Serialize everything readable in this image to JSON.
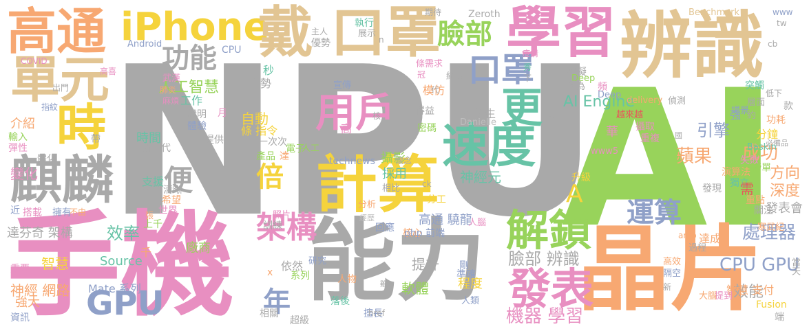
{
  "colors": {
    "background": "#ffffff",
    "palette": {
      "gray": "#a9a9a9",
      "green": "#98d35b",
      "pink": "#e88fc1",
      "tan": "#e2c593",
      "orange": "#f7a872",
      "yellow": "#f5d33c",
      "blue": "#8fa0c8",
      "teal": "#67c3a6",
      "mid_gray": "#bdbdbd",
      "red": "#e7585b"
    }
  },
  "words": [
    {
      "text": "NPU",
      "color": "gray"
    },
    {
      "text": "AI",
      "color": "green"
    },
    {
      "text": "手機",
      "color": "pink"
    },
    {
      "text": "晶片",
      "color": "orange"
    },
    {
      "text": "能力",
      "color": "gray"
    },
    {
      "text": "辨識",
      "color": "tan"
    },
    {
      "text": "高通",
      "color": "orange"
    },
    {
      "text": "iPhone",
      "color": "yellow"
    },
    {
      "text": "戴",
      "color": "tan"
    },
    {
      "text": "口罩",
      "color": "tan"
    },
    {
      "text": "學習",
      "color": "pink"
    },
    {
      "text": "單元",
      "color": "tan"
    },
    {
      "text": "時",
      "color": "yellow"
    },
    {
      "text": "麒麟",
      "color": "gray"
    },
    {
      "text": "計算",
      "color": "yellow"
    },
    {
      "text": "速度",
      "color": "teal"
    },
    {
      "text": "用戶",
      "color": "pink"
    },
    {
      "text": "更",
      "color": "teal"
    },
    {
      "text": "解鎖",
      "color": "green"
    },
    {
      "text": "發表",
      "color": "pink"
    },
    {
      "text": "GPU",
      "color": "blue"
    },
    {
      "text": "架構",
      "color": "pink"
    },
    {
      "text": "功能",
      "color": "gray"
    },
    {
      "text": "臉部",
      "color": "green"
    },
    {
      "text": "口罩",
      "color": "blue"
    },
    {
      "text": "運算",
      "color": "blue"
    },
    {
      "text": "倍",
      "color": "yellow"
    },
    {
      "text": "便",
      "color": "gray"
    },
    {
      "text": "年",
      "color": "blue"
    },
    {
      "text": "A",
      "color": "yellow"
    },
    {
      "text": "效率",
      "color": "teal"
    },
    {
      "text": "蘋果",
      "color": "orange"
    },
    {
      "text": "引擎",
      "color": "blue"
    },
    {
      "text": "成功",
      "color": "orange"
    },
    {
      "text": "機器 學習",
      "color": "pink"
    },
    {
      "text": "處理器",
      "color": "blue"
    },
    {
      "text": "CPU GPU",
      "color": "blue"
    },
    {
      "text": "臉部 辨識",
      "color": "gray"
    },
    {
      "text": "人工智慧",
      "color": "green"
    },
    {
      "text": "AI Engine",
      "color": "teal"
    },
    {
      "text": "神經元",
      "color": "teal"
    },
    {
      "text": "深度",
      "color": "orange"
    },
    {
      "text": "方向",
      "color": "orange"
    },
    {
      "text": "效能",
      "color": "gray"
    },
    {
      "text": "發表會",
      "color": "gray"
    },
    {
      "text": "高通 驍龍",
      "color": "blue"
    },
    {
      "text": "提升",
      "color": "gray"
    },
    {
      "text": "軟體",
      "color": "green"
    },
    {
      "text": "程度",
      "color": "yellow"
    },
    {
      "text": "攝影",
      "color": "green"
    },
    {
      "text": "時間",
      "color": "teal"
    },
    {
      "text": "介紹",
      "color": "orange"
    },
    {
      "text": "變化",
      "color": "pink"
    },
    {
      "text": "廠商",
      "color": "green"
    },
    {
      "text": "智慧",
      "color": "yellow"
    },
    {
      "text": "神經 網路",
      "color": "orange"
    },
    {
      "text": "強大",
      "color": "orange"
    },
    {
      "text": "資訊",
      "color": "blue"
    },
    {
      "text": "Mate 系列",
      "color": "blue"
    },
    {
      "text": "Source",
      "color": "teal"
    },
    {
      "text": "達芬奇 架構",
      "color": "gray"
    },
    {
      "text": "自動",
      "color": "yellow"
    },
    {
      "text": "條 指令",
      "color": "yellow"
    },
    {
      "text": "一次次",
      "color": "gray"
    },
    {
      "text": "人物",
      "color": "orange"
    },
    {
      "text": "A 仿生",
      "color": "gray"
    },
    {
      "text": "Danielle",
      "color": "mid_gray"
    },
    {
      "text": "密碼",
      "color": "green"
    },
    {
      "text": "採用",
      "color": "teal"
    },
    {
      "text": "分析",
      "color": "orange"
    },
    {
      "text": "分工",
      "color": "yellow"
    },
    {
      "text": "核心",
      "color": "orange"
    },
    {
      "text": "達成",
      "color": "orange"
    },
    {
      "text": "分鐘",
      "color": "yellow"
    },
    {
      "text": "功耗",
      "color": "orange"
    },
    {
      "text": "升級",
      "color": "yellow"
    },
    {
      "text": "相比",
      "color": "gray"
    },
    {
      "text": "www5",
      "color": "pink"
    },
    {
      "text": "Baskin",
      "color": "teal"
    },
    {
      "text": "失敗",
      "color": "pink"
    },
    {
      "text": "演算法",
      "color": "orange"
    },
    {
      "text": "獨立",
      "color": "teal"
    },
    {
      "text": "榜單",
      "color": "green"
    },
    {
      "text": "發現",
      "color": "gray"
    },
    {
      "text": "需",
      "color": "red"
    },
    {
      "text": "重點",
      "color": "orange"
    },
    {
      "text": "關注",
      "color": "gray"
    },
    {
      "text": "寒武紀",
      "color": "orange"
    },
    {
      "text": "過程",
      "color": "gray"
    },
    {
      "text": "高效",
      "color": "orange"
    },
    {
      "text": "隔空",
      "color": "blue"
    },
    {
      "text": "智慧 支付",
      "color": "orange"
    },
    {
      "text": "Fusion",
      "color": "yellow"
    },
    {
      "text": "端",
      "color": "gray"
    },
    {
      "text": "提到",
      "color": "pink"
    },
    {
      "text": "大腦",
      "color": "orange"
    },
    {
      "text": "新",
      "color": "gray"
    },
    {
      "text": "當天",
      "color": "gray"
    },
    {
      "text": "amp",
      "color": "orange"
    },
    {
      "text": "人腦",
      "color": "pink"
    },
    {
      "text": "php 前端",
      "color": "blue"
    },
    {
      "text": "剛",
      "color": "blue"
    },
    {
      "text": "準確",
      "color": "blue"
    },
    {
      "text": "落後",
      "color": "teal"
    },
    {
      "text": "擅長",
      "color": "blue"
    },
    {
      "text": "人類",
      "color": "blue"
    },
    {
      "text": "研究",
      "color": "blue"
    },
    {
      "text": "依然",
      "color": "gray"
    },
    {
      "text": "回應",
      "color": "blue"
    },
    {
      "text": "經歷",
      "color": "mid_gray"
    },
    {
      "text": "超級",
      "color": "gray"
    },
    {
      "text": "相關",
      "color": "gray"
    },
    {
      "text": "重要",
      "color": "pink"
    },
    {
      "text": "世界",
      "color": "pink"
    },
    {
      "text": "首",
      "color": "gray"
    },
    {
      "text": "清晰",
      "color": "gray"
    },
    {
      "text": "希望",
      "color": "orange"
    },
    {
      "text": "照片",
      "color": "pink"
    },
    {
      "text": "訓練",
      "color": "gray"
    },
    {
      "text": "支援",
      "color": "teal"
    },
    {
      "text": "新一代",
      "color": "gray"
    },
    {
      "text": "提供",
      "color": "gray"
    },
    {
      "text": "體驗",
      "color": "blue"
    },
    {
      "text": "證明",
      "color": "gray"
    },
    {
      "text": "工作",
      "color": "teal"
    },
    {
      "text": "手勢",
      "color": "gray"
    },
    {
      "text": "秒",
      "color": "teal"
    },
    {
      "text": "武漢",
      "color": "pink"
    },
    {
      "text": "麻煩",
      "color": "pink"
    },
    {
      "text": "指紋",
      "color": "blue"
    },
    {
      "text": "出門",
      "color": "gray"
    },
    {
      "text": "高喜",
      "color": "pink"
    },
    {
      "text": "COVID",
      "color": "pink"
    },
    {
      "text": "Android",
      "color": "blue"
    },
    {
      "text": "CPU",
      "color": "blue"
    },
    {
      "text": "主人",
      "color": "gray"
    },
    {
      "text": "優勢",
      "color": "gray"
    },
    {
      "text": "執行",
      "color": "teal"
    },
    {
      "text": "展示",
      "color": "gray"
    },
    {
      "text": "期待",
      "color": "gray"
    },
    {
      "text": "Zeroth",
      "color": "gray"
    },
    {
      "text": "Benchmark",
      "color": "tan"
    },
    {
      "text": "www",
      "color": "blue"
    },
    {
      "text": "tw",
      "color": "gray"
    },
    {
      "text": "cb",
      "color": "gray"
    },
    {
      "text": "模擬",
      "color": "gray"
    },
    {
      "text": "華為",
      "color": "gray"
    },
    {
      "text": "Deep",
      "color": "green"
    },
    {
      "text": "宣傳",
      "color": "blue"
    },
    {
      "text": "模仿",
      "color": "orange"
    },
    {
      "text": "網友",
      "color": "gray"
    },
    {
      "text": "得益",
      "color": "gray"
    },
    {
      "text": "delivery",
      "color": "orange"
    },
    {
      "text": "偵測",
      "color": "gray"
    },
    {
      "text": "突觸",
      "color": "teal"
    },
    {
      "text": "層面",
      "color": "gray"
    },
    {
      "text": "場景",
      "color": "blue"
    },
    {
      "text": "越來越",
      "color": "red"
    },
    {
      "text": "強",
      "color": "blue"
    },
    {
      "text": "約",
      "color": "gray"
    },
    {
      "text": "款",
      "color": "gray"
    },
    {
      "text": "攝取",
      "color": "pink"
    },
    {
      "text": "重複",
      "color": "pink"
    },
    {
      "text": "華",
      "color": "pink"
    },
    {
      "text": "兩",
      "color": "gray"
    },
    {
      "text": "technews",
      "color": "blue"
    },
    {
      "text": "懷念",
      "color": "gray"
    },
    {
      "text": "高",
      "color": "pink"
    },
    {
      "text": "核",
      "color": "gray"
    },
    {
      "text": "人工",
      "color": "green"
    },
    {
      "text": "電子",
      "color": "green"
    },
    {
      "text": "產品",
      "color": "green"
    },
    {
      "text": "達",
      "color": "orange"
    },
    {
      "text": "輸入",
      "color": "green"
    },
    {
      "text": "彈性",
      "color": "pink"
    },
    {
      "text": "一體化",
      "color": "gray"
    },
    {
      "text": "帶",
      "color": "gray"
    },
    {
      "text": "搭載",
      "color": "pink"
    },
    {
      "text": "擁有",
      "color": "blue"
    },
    {
      "text": "不由",
      "color": "orange"
    },
    {
      "text": "上千",
      "color": "green"
    },
    {
      "text": "張",
      "color": "orange"
    },
    {
      "text": "近",
      "color": "blue"
    },
    {
      "text": "千",
      "color": "orange"
    },
    {
      "text": "x",
      "color": "orange"
    },
    {
      "text": "系列",
      "color": "green"
    },
    {
      "text": "ck",
      "color": "gray"
    },
    {
      "text": "肺炎",
      "color": "orange"
    },
    {
      "text": "月",
      "color": "pink"
    },
    {
      "text": "次",
      "color": "gray"
    },
    {
      "text": "頻",
      "color": "pink"
    },
    {
      "text": "Deep",
      "color": "blue"
    },
    {
      "text": "n",
      "color": "gray"
    },
    {
      "text": "疫情",
      "color": "pink"
    },
    {
      "text": "冠",
      "color": "pink"
    },
    {
      "text": "代",
      "color": "gray"
    },
    {
      "text": "低下",
      "color": "gray"
    },
    {
      "text": "必備品",
      "color": "gray"
    },
    {
      "text": "href",
      "color": "gray"
    },
    {
      "text": "雖",
      "color": "gray"
    },
    {
      "text": "條需求",
      "color": "pink"
    },
    {
      "text": "國",
      "color": "gray"
    },
    {
      "text": "秀",
      "color": "teal"
    },
    {
      "text": "下",
      "color": "gray"
    }
  ]
}
